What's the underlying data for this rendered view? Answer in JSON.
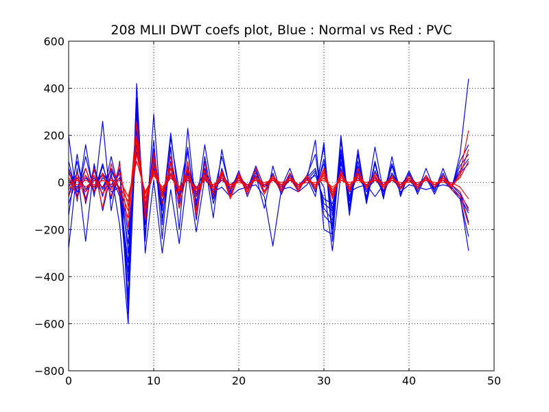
{
  "chart_data": {
    "type": "line",
    "title": "208 MLII DWT coefs plot, Blue : Normal vs Red : PVC",
    "xlabel": "",
    "ylabel": "",
    "xlim": [
      0,
      50
    ],
    "ylim": [
      -800,
      600
    ],
    "x_ticks": [
      0,
      10,
      20,
      30,
      40,
      50
    ],
    "y_ticks": [
      -800,
      -600,
      -400,
      -200,
      0,
      200,
      400,
      600
    ],
    "x_tick_labels": [
      "0",
      "10",
      "20",
      "30",
      "40",
      "50"
    ],
    "y_tick_labels": [
      "−800",
      "−600",
      "−400",
      "−200",
      "0",
      "200",
      "400",
      "600"
    ],
    "grid": true,
    "grid_style": "dotted",
    "x": [
      0,
      1,
      2,
      3,
      4,
      5,
      6,
      7,
      8,
      9,
      10,
      11,
      12,
      13,
      14,
      15,
      16,
      17,
      18,
      19,
      20,
      21,
      22,
      23,
      24,
      25,
      26,
      27,
      28,
      29,
      30,
      31,
      32,
      33,
      34,
      35,
      36,
      37,
      38,
      39,
      40,
      41,
      42,
      43,
      44,
      45,
      46,
      47
    ],
    "colors": {
      "normal": "#0000ff",
      "pvc": "#ff0000"
    },
    "series": [
      {
        "class": "normal",
        "values": [
          -280,
          60,
          -250,
          80,
          -120,
          40,
          -180,
          -600,
          420,
          -300,
          10,
          -300,
          -30,
          -260,
          40,
          -210,
          20,
          -40,
          -20,
          -60,
          -30,
          -20,
          -10,
          -60,
          -270,
          -30,
          -20,
          -40,
          -10,
          40,
          -20,
          -290,
          40,
          -40,
          -20,
          -10,
          -60,
          -10,
          30,
          -40,
          -10,
          -20,
          -30,
          -20,
          -10,
          -20,
          -60,
          -290
        ]
      },
      {
        "class": "normal",
        "values": [
          200,
          -80,
          160,
          -60,
          260,
          -120,
          90,
          -520,
          360,
          -250,
          290,
          -180,
          190,
          -40,
          150,
          -160,
          110,
          -90,
          60,
          -50,
          30,
          -40,
          20,
          -40,
          40,
          -50,
          30,
          -20,
          10,
          180,
          -200,
          -220,
          200,
          -120,
          140,
          -80,
          90,
          -60,
          70,
          -50,
          40,
          -40,
          60,
          -30,
          40,
          -30,
          120,
          440
        ]
      },
      {
        "class": "normal",
        "values": [
          -140,
          120,
          -90,
          70,
          -60,
          110,
          -50,
          -480,
          330,
          -220,
          180,
          -240,
          150,
          -200,
          230,
          -120,
          90,
          -150,
          140,
          -40,
          50,
          -60,
          30,
          -110,
          70,
          -50,
          40,
          -30,
          20,
          -60,
          170,
          -250,
          180,
          -140,
          120,
          -90,
          80,
          -70,
          110,
          -60,
          40,
          -50,
          30,
          -40,
          60,
          -30,
          -70,
          -230
        ]
      },
      {
        "class": "normal",
        "values": [
          90,
          -60,
          110,
          -40,
          80,
          -70,
          60,
          -560,
          280,
          -180,
          140,
          -120,
          210,
          -90,
          130,
          -100,
          160,
          -60,
          110,
          -30,
          40,
          -30,
          70,
          -20,
          30,
          -20,
          60,
          -40,
          30,
          120,
          -140,
          -180,
          140,
          -100,
          90,
          -70,
          150,
          -40,
          80,
          -30,
          50,
          -30,
          20,
          -50,
          30,
          -20,
          90,
          160
        ]
      },
      {
        "class": "normal",
        "values": [
          -60,
          90,
          -70,
          50,
          -30,
          60,
          -40,
          -420,
          310,
          -160,
          120,
          -150,
          90,
          -110,
          70,
          -80,
          60,
          -70,
          40,
          -30,
          30,
          -20,
          50,
          -40,
          20,
          -30,
          40,
          -20,
          30,
          -30,
          150,
          -200,
          120,
          -80,
          70,
          -60,
          50,
          -40,
          40,
          -30,
          20,
          -20,
          30,
          -20,
          20,
          -10,
          -40,
          -170
        ]
      },
      {
        "class": "normal",
        "values": [
          40,
          -30,
          60,
          -50,
          70,
          -40,
          -20,
          -380,
          220,
          -140,
          90,
          -80,
          60,
          -70,
          50,
          -60,
          40,
          -50,
          30,
          -20,
          20,
          -30,
          40,
          -20,
          30,
          -20,
          20,
          -30,
          20,
          60,
          -110,
          -160,
          110,
          -60,
          50,
          -40,
          30,
          -50,
          40,
          -20,
          30,
          -20,
          20,
          -30,
          20,
          -20,
          70,
          120
        ]
      },
      {
        "class": "normal",
        "values": [
          -20,
          40,
          -30,
          20,
          -50,
          30,
          -60,
          -340,
          250,
          -120,
          70,
          -100,
          80,
          -60,
          40,
          -50,
          30,
          -40,
          20,
          -30,
          10,
          -20,
          30,
          -10,
          20,
          -30,
          10,
          -20,
          30,
          -40,
          100,
          -140,
          90,
          -70,
          40,
          -30,
          20,
          -40,
          30,
          -20,
          10,
          -30,
          20,
          -20,
          10,
          -30,
          -60,
          -130
        ]
      },
      {
        "class": "normal",
        "values": [
          10,
          -20,
          30,
          -40,
          20,
          -10,
          40,
          -300,
          190,
          -100,
          60,
          -60,
          40,
          -50,
          60,
          -30,
          50,
          -20,
          30,
          -10,
          20,
          -10,
          10,
          -20,
          10,
          -10,
          20,
          -10,
          10,
          50,
          -90,
          -120,
          80,
          -40,
          30,
          -20,
          40,
          -10,
          20,
          -10,
          30,
          -10,
          10,
          -20,
          30,
          -10,
          50,
          100
        ]
      },
      {
        "class": "normal",
        "values": [
          -90,
          20,
          -40,
          10,
          -20,
          50,
          -30,
          -260,
          160,
          -90,
          50,
          -40,
          30,
          -30,
          20,
          -40,
          20,
          -30,
          10,
          -20,
          10,
          -20,
          20,
          -10,
          10,
          -20,
          10,
          -10,
          20,
          -20,
          80,
          -110,
          60,
          -30,
          20,
          -30,
          10,
          -20,
          10,
          -20,
          10,
          -10,
          20,
          -10,
          10,
          -10,
          -50,
          -110
        ]
      },
      {
        "class": "normal",
        "values": [
          60,
          -40,
          20,
          -20,
          40,
          -20,
          20,
          -220,
          130,
          -70,
          40,
          -30,
          20,
          -20,
          30,
          -20,
          10,
          -20,
          20,
          -10,
          10,
          -10,
          10,
          -10,
          20,
          -10,
          10,
          -10,
          10,
          30,
          -70,
          -90,
          50,
          -20,
          20,
          -10,
          20,
          -10,
          20,
          -10,
          10,
          -10,
          10,
          -10,
          10,
          -10,
          40,
          80
        ]
      },
      {
        "class": "pvc",
        "values": [
          -60,
          40,
          -80,
          60,
          -110,
          80,
          -50,
          -150,
          260,
          -160,
          130,
          -90,
          80,
          -110,
          60,
          -120,
          50,
          -60,
          40,
          -70,
          30,
          -50,
          60,
          -40,
          30,
          -30,
          20,
          -40,
          30,
          -20,
          60,
          -60,
          50,
          -30,
          40,
          -20,
          30,
          -30,
          20,
          -20,
          30,
          -20,
          20,
          -20,
          30,
          -20,
          40,
          220
        ]
      },
      {
        "class": "pvc",
        "values": [
          50,
          -70,
          60,
          -40,
          40,
          -60,
          80,
          -190,
          200,
          -120,
          100,
          -60,
          110,
          -70,
          90,
          -140,
          80,
          -40,
          50,
          -60,
          40,
          -40,
          30,
          -50,
          20,
          -40,
          40,
          -30,
          30,
          -30,
          50,
          -70,
          40,
          -40,
          60,
          -30,
          40,
          -20,
          30,
          -30,
          20,
          -30,
          30,
          -20,
          20,
          -30,
          -60,
          -180
        ]
      },
      {
        "class": "pvc",
        "values": [
          -30,
          20,
          -40,
          30,
          -50,
          20,
          -30,
          -120,
          180,
          -90,
          70,
          -50,
          60,
          -40,
          50,
          -60,
          30,
          -30,
          40,
          -30,
          20,
          -30,
          20,
          -20,
          30,
          -20,
          20,
          -20,
          20,
          -20,
          40,
          -50,
          30,
          -20,
          30,
          -20,
          20,
          -20,
          20,
          -20,
          20,
          -20,
          20,
          -10,
          20,
          -20,
          30,
          140
        ]
      },
      {
        "class": "pvc",
        "values": [
          20,
          -30,
          30,
          -20,
          30,
          -30,
          40,
          -100,
          150,
          -70,
          50,
          -40,
          40,
          -30,
          30,
          -40,
          20,
          -20,
          30,
          -20,
          10,
          -20,
          20,
          -10,
          20,
          -10,
          20,
          -10,
          10,
          -10,
          30,
          -40,
          20,
          -10,
          20,
          -10,
          10,
          -10,
          20,
          -10,
          10,
          -10,
          10,
          -10,
          10,
          -10,
          -40,
          -120
        ]
      },
      {
        "class": "pvc",
        "values": [
          -10,
          10,
          -20,
          10,
          -20,
          10,
          -20,
          -80,
          120,
          -50,
          40,
          -30,
          30,
          -20,
          20,
          -30,
          10,
          -10,
          20,
          -10,
          10,
          -10,
          10,
          -10,
          10,
          -10,
          10,
          -10,
          10,
          -10,
          20,
          -30,
          10,
          -10,
          10,
          -10,
          10,
          -10,
          10,
          -10,
          10,
          -10,
          10,
          -10,
          10,
          -10,
          20,
          90
        ]
      },
      {
        "class": "pvc",
        "values": [
          0,
          -10,
          10,
          -10,
          10,
          -10,
          10,
          -60,
          90,
          -40,
          30,
          -20,
          20,
          -20,
          10,
          -20,
          10,
          -10,
          10,
          -10,
          0,
          -10,
          10,
          0,
          10,
          0,
          10,
          -10,
          0,
          0,
          10,
          -20,
          10,
          0,
          10,
          0,
          10,
          0,
          10,
          0,
          0,
          0,
          10,
          0,
          0,
          0,
          -20,
          -70
        ]
      }
    ]
  }
}
